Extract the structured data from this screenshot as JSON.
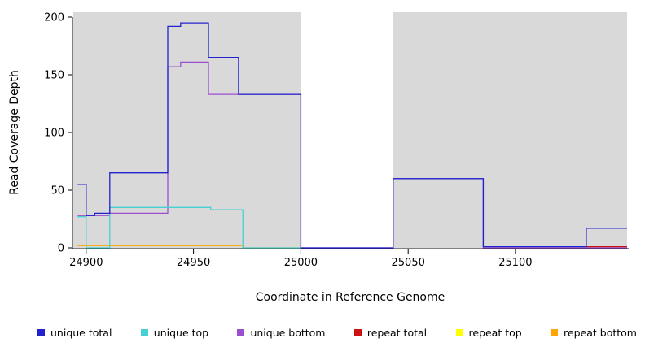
{
  "chart_data": {
    "type": "line",
    "subtype": "step-coverage-plot",
    "title": "",
    "xlabel": "Coordinate in Reference Genome",
    "ylabel": "Read Coverage Depth",
    "xlim": [
      24894,
      25152
    ],
    "ylim": [
      0,
      200
    ],
    "x_ticks": [
      24900,
      24950,
      25000,
      25050,
      25100
    ],
    "y_ticks": [
      0,
      50,
      100,
      150,
      200
    ],
    "grid": false,
    "legend_position": "bottom",
    "shaded_color": "#d9d9d9",
    "shaded_regions": [
      {
        "x1": 24894,
        "x2": 25000
      },
      {
        "x1": 25043,
        "x2": 25152
      }
    ],
    "series": [
      {
        "name": "unique total",
        "color": "#2222cc",
        "segments": [
          [
            24896,
            24900,
            55
          ],
          [
            24900,
            24904,
            28
          ],
          [
            24904,
            24911,
            30
          ],
          [
            24911,
            24938,
            65
          ],
          [
            24938,
            24944,
            192
          ],
          [
            24944,
            24957,
            195
          ],
          [
            24957,
            24971,
            165
          ],
          [
            24971,
            25000,
            133
          ],
          [
            25000,
            25043,
            0
          ],
          [
            25043,
            25085,
            60
          ],
          [
            25085,
            25133,
            1
          ],
          [
            25133,
            25152,
            17
          ]
        ]
      },
      {
        "name": "unique top",
        "color": "#45d1d1",
        "segments": [
          [
            24896,
            24900,
            27
          ],
          [
            24900,
            24911,
            0
          ],
          [
            24911,
            24958,
            35
          ],
          [
            24958,
            24973,
            33
          ],
          [
            24973,
            25000,
            0
          ]
        ]
      },
      {
        "name": "unique bottom",
        "color": "#9b4fd0",
        "segments": [
          [
            24896,
            24911,
            28
          ],
          [
            24911,
            24938,
            30
          ],
          [
            24938,
            24944,
            157
          ],
          [
            24944,
            24957,
            161
          ],
          [
            24957,
            25000,
            133
          ],
          [
            25000,
            25043,
            0
          ],
          [
            25043,
            25085,
            60
          ],
          [
            25085,
            25152,
            0
          ]
        ]
      },
      {
        "name": "repeat total",
        "color": "#cc1111",
        "segments": [
          [
            25133,
            25152,
            1
          ]
        ]
      },
      {
        "name": "repeat top",
        "color": "#ffff00",
        "segments": []
      },
      {
        "name": "repeat bottom",
        "color": "#ffa500",
        "segments": [
          [
            24896,
            24973,
            2
          ],
          [
            24973,
            25000,
            0
          ]
        ]
      }
    ]
  }
}
